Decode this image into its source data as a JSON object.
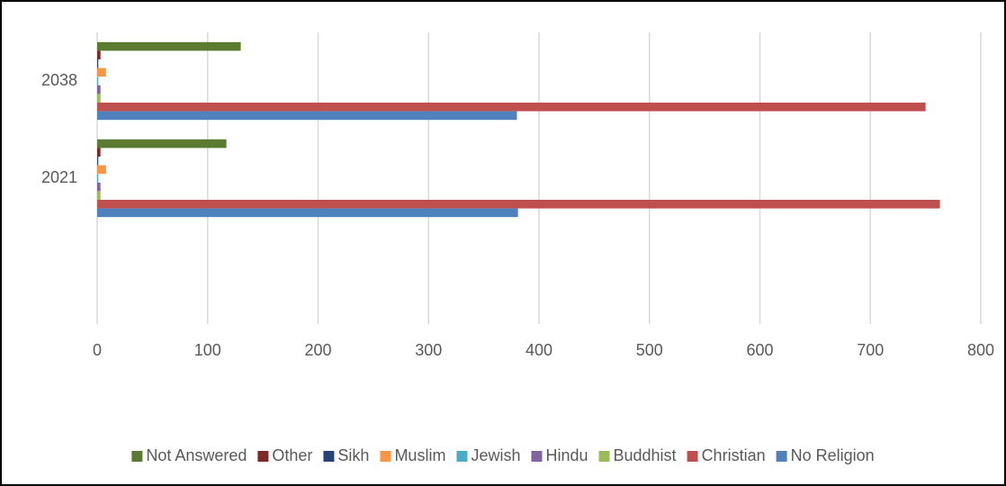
{
  "chart_data": {
    "type": "hbar",
    "categories": [
      null,
      "2021",
      "2038"
    ],
    "series": [
      {
        "name": "Not Answered",
        "color": "#5b7b30",
        "values": [
          null,
          117,
          130
        ]
      },
      {
        "name": "Other",
        "color": "#7b2a24",
        "values": [
          null,
          3,
          3
        ]
      },
      {
        "name": "Sikh",
        "color": "#264478",
        "values": [
          null,
          1,
          1
        ]
      },
      {
        "name": "Muslim",
        "color": "#f79646",
        "values": [
          null,
          8,
          8
        ]
      },
      {
        "name": "Jewish",
        "color": "#4bacc6",
        "values": [
          null,
          1,
          1
        ]
      },
      {
        "name": "Hindu",
        "color": "#8064a2",
        "values": [
          null,
          3,
          3
        ]
      },
      {
        "name": "Buddhist",
        "color": "#9bbb59",
        "values": [
          null,
          3,
          3
        ]
      },
      {
        "name": "Christian",
        "color": "#c0504d",
        "values": [
          null,
          763,
          750
        ]
      },
      {
        "name": "No Religion",
        "color": "#4f81bd",
        "values": [
          null,
          381,
          380
        ]
      }
    ],
    "xlim": [
      0,
      800
    ],
    "xticks": [
      0,
      100,
      200,
      300,
      400,
      500,
      600,
      700,
      800
    ],
    "grid": true,
    "legend": "bottom"
  }
}
